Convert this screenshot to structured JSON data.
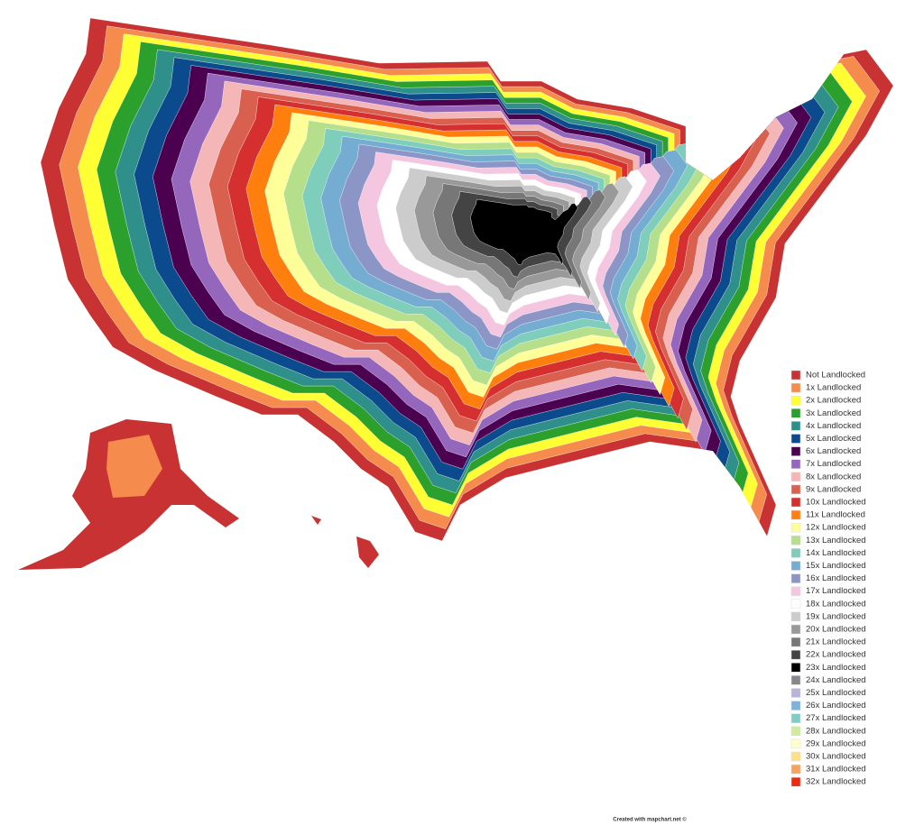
{
  "legend": {
    "items": [
      {
        "label": "Not Landlocked",
        "color": "#c83232"
      },
      {
        "label": "1x Landlocked",
        "color": "#f58b4c"
      },
      {
        "label": "2x Landlocked",
        "color": "#ffff33"
      },
      {
        "label": "3x Landlocked",
        "color": "#2ca02c"
      },
      {
        "label": "4x Landlocked",
        "color": "#2f8f8a"
      },
      {
        "label": "5x Landlocked",
        "color": "#0b4a8c"
      },
      {
        "label": "6x Landlocked",
        "color": "#4b0050"
      },
      {
        "label": "7x Landlocked",
        "color": "#9467bd"
      },
      {
        "label": "8x Landlocked",
        "color": "#f4b6b6"
      },
      {
        "label": "9x Landlocked",
        "color": "#d9604f"
      },
      {
        "label": "10x Landlocked",
        "color": "#d62f2f"
      },
      {
        "label": "11x Landlocked",
        "color": "#ff7f0e"
      },
      {
        "label": "12x Landlocked",
        "color": "#ffff99"
      },
      {
        "label": "13x Landlocked",
        "color": "#b5df8a"
      },
      {
        "label": "14x Landlocked",
        "color": "#7fcdbb"
      },
      {
        "label": "15x Landlocked",
        "color": "#74add1"
      },
      {
        "label": "16x Landlocked",
        "color": "#8c96c6"
      },
      {
        "label": "17x Landlocked",
        "color": "#f4c6e0"
      },
      {
        "label": "18x Landlocked",
        "color": "#ffffff"
      },
      {
        "label": "19x Landlocked",
        "color": "#cccccc"
      },
      {
        "label": "20x Landlocked",
        "color": "#999999"
      },
      {
        "label": "21x Landlocked",
        "color": "#777777"
      },
      {
        "label": "22x Landlocked",
        "color": "#444444"
      },
      {
        "label": "23x Landlocked",
        "color": "#000000"
      },
      {
        "label": "24x Landlocked",
        "color": "#888888"
      },
      {
        "label": "25x Landlocked",
        "color": "#b8b4d8"
      },
      {
        "label": "26x Landlocked",
        "color": "#7fb2dc"
      },
      {
        "label": "27x Landlocked",
        "color": "#80cdc1"
      },
      {
        "label": "28x Landlocked",
        "color": "#d0eaa0"
      },
      {
        "label": "29x Landlocked",
        "color": "#ffffcc"
      },
      {
        "label": "30x Landlocked",
        "color": "#ffe08a"
      },
      {
        "label": "31x Landlocked",
        "color": "#f7a35c"
      },
      {
        "label": "32x Landlocked",
        "color": "#ee2a10"
      }
    ]
  },
  "credit": "Created with mapchart.net ©"
}
